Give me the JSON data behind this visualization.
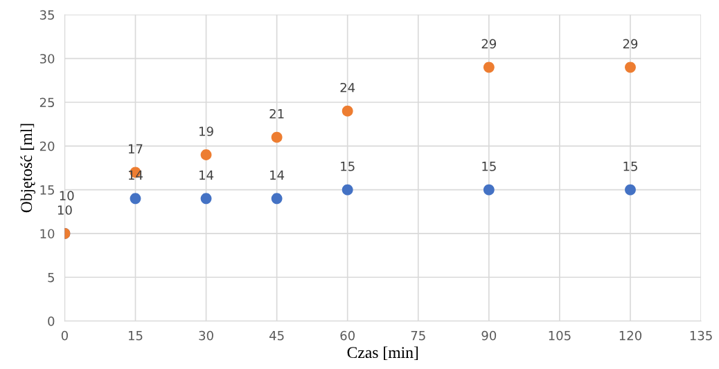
{
  "chart_data": {
    "type": "scatter",
    "xlabel": "Czas [min]",
    "ylabel": "Objętość [ml]",
    "series": [
      {
        "color": "#4472c4",
        "x": [
          0,
          15,
          30,
          45,
          60,
          90,
          120
        ],
        "values": [
          10,
          14,
          14,
          14,
          15,
          15,
          15
        ]
      },
      {
        "color": "#ed7d31",
        "x": [
          0,
          15,
          30,
          45,
          60,
          90,
          120
        ],
        "values": [
          10,
          17,
          19,
          21,
          24,
          29,
          29
        ]
      }
    ],
    "xlim": [
      0,
      135
    ],
    "xticks": [
      0,
      15,
      30,
      45,
      60,
      75,
      90,
      105,
      120,
      135
    ],
    "ylim": [
      0,
      35
    ],
    "yticks": [
      0,
      5,
      10,
      15,
      20,
      25,
      30,
      35
    ],
    "grid": true,
    "marker": "circle",
    "data_labels": true
  }
}
